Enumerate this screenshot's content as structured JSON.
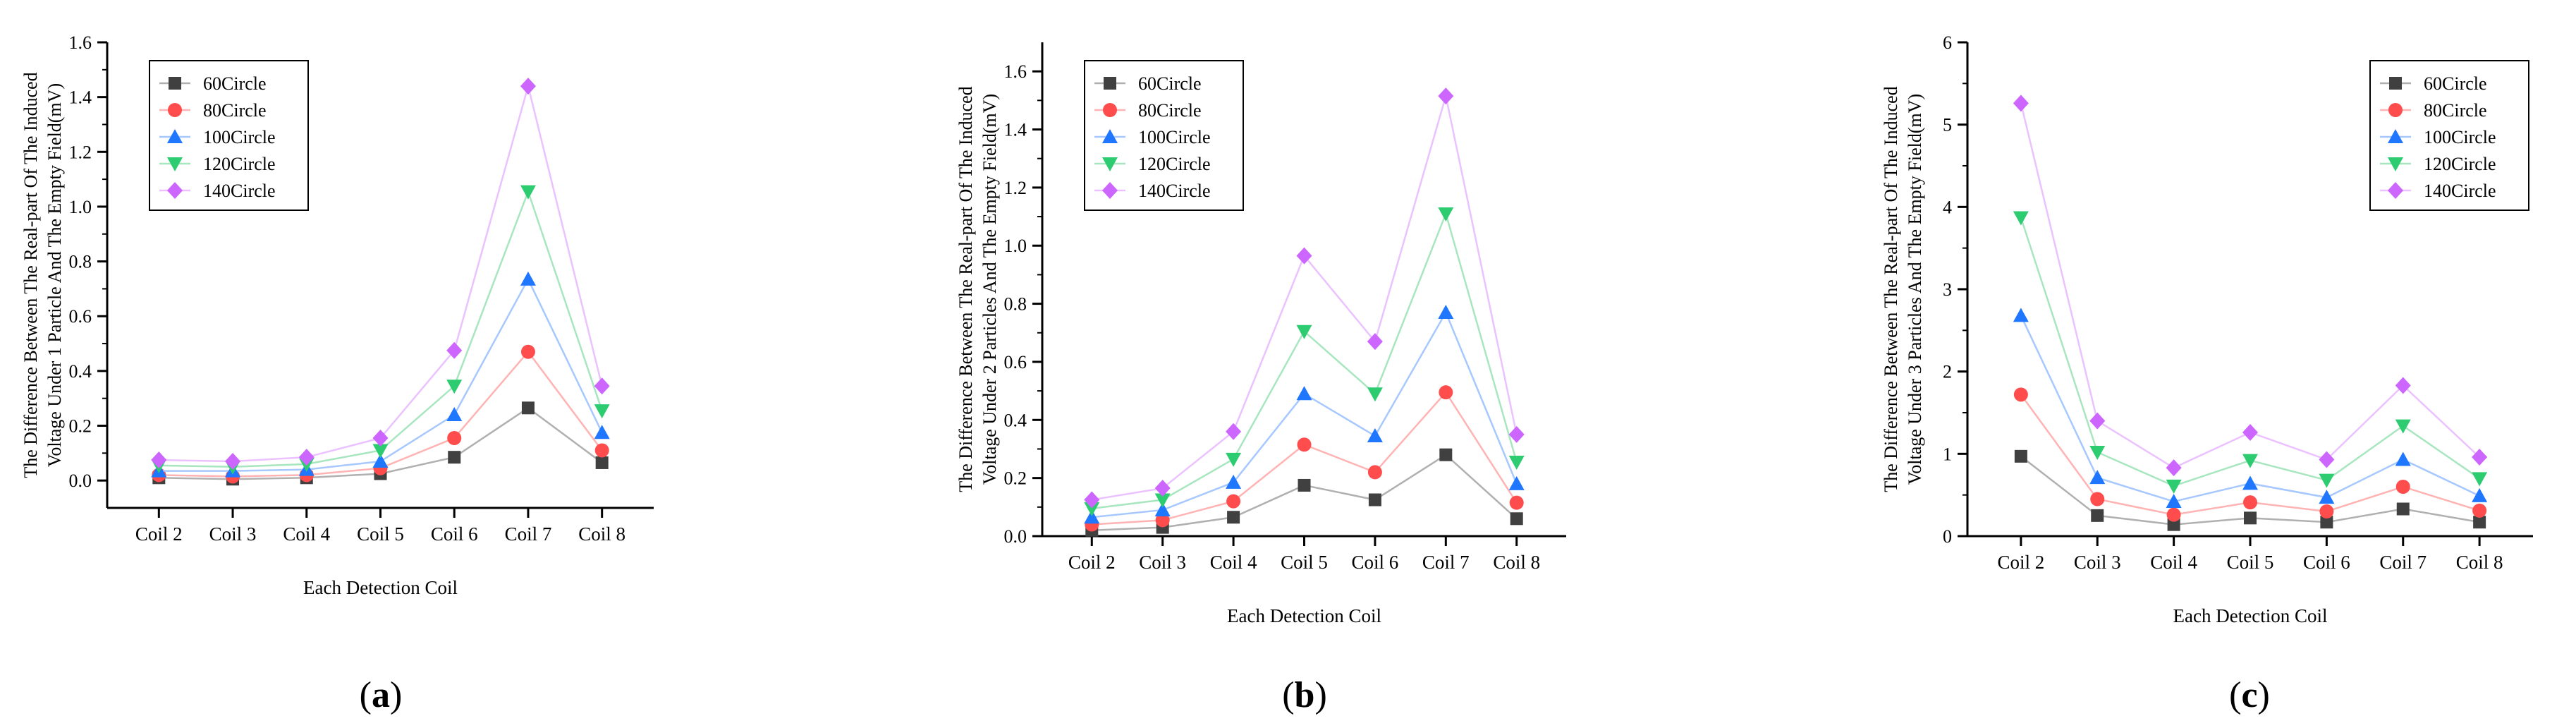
{
  "colors": {
    "axis": "#000000",
    "series": [
      "#404040",
      "#ff4d4d",
      "#1f77ff",
      "#2ecc71",
      "#cc66ff"
    ],
    "lines": [
      "#b0b0b0",
      "#ffb3b3",
      "#a6c8ff",
      "#a8e6bf",
      "#ebc2ff"
    ]
  },
  "chart_data": [
    {
      "type": "line",
      "panel_label": "(a)",
      "panel_letter": "a",
      "xlabel": "Each Detection Coil",
      "ylabel_line1": "The Difference Between The Real-part Of The Induced",
      "ylabel_line2": "Voltage Under 1 Particle And The Empty Field(mV)",
      "categories": [
        "Coil 2",
        "Coil 3",
        "Coil 4",
        "Coil 5",
        "Coil 6",
        "Coil 7",
        "Coil 8"
      ],
      "ylim": [
        -0.1,
        1.6
      ],
      "yticks": [
        "0.0",
        "0.2",
        "0.4",
        "0.6",
        "0.8",
        "1.0",
        "1.2",
        "1.4",
        "1.6"
      ],
      "legend_position": "top-left",
      "series": [
        {
          "name": "60Circle",
          "marker": "square",
          "values": [
            0.01,
            0.005,
            0.01,
            0.025,
            0.085,
            0.265,
            0.065
          ]
        },
        {
          "name": "80Circle",
          "marker": "circle",
          "values": [
            0.02,
            0.015,
            0.02,
            0.045,
            0.155,
            0.47,
            0.11
          ]
        },
        {
          "name": "100Circle",
          "marker": "triangle-up",
          "values": [
            0.035,
            0.035,
            0.04,
            0.07,
            0.24,
            0.735,
            0.175
          ]
        },
        {
          "name": "120Circle",
          "marker": "triangle-down",
          "values": [
            0.055,
            0.05,
            0.06,
            0.11,
            0.345,
            1.055,
            0.255
          ]
        },
        {
          "name": "140Circle",
          "marker": "diamond",
          "values": [
            0.075,
            0.07,
            0.085,
            0.155,
            0.475,
            1.44,
            0.345
          ]
        }
      ]
    },
    {
      "type": "line",
      "panel_label": "(b)",
      "panel_letter": "b",
      "xlabel": "Each Detection Coil",
      "ylabel_line1": "The Difference Between The Real-part Of The Induced",
      "ylabel_line2": "Voltage Under 2 Particles And The Empty Field(mV)",
      "categories": [
        "Coil 2",
        "Coil 3",
        "Coil 4",
        "Coil 5",
        "Coil 6",
        "Coil 7",
        "Coil 8"
      ],
      "ylim": [
        0.0,
        1.7
      ],
      "yticks": [
        "0.0",
        "0.2",
        "0.4",
        "0.6",
        "0.8",
        "1.0",
        "1.2",
        "1.4",
        "1.6"
      ],
      "legend_position": "top-left",
      "series": [
        {
          "name": "60Circle",
          "marker": "square",
          "values": [
            0.02,
            0.03,
            0.065,
            0.175,
            0.125,
            0.28,
            0.06
          ]
        },
        {
          "name": "80Circle",
          "marker": "circle",
          "values": [
            0.04,
            0.055,
            0.12,
            0.315,
            0.22,
            0.495,
            0.115
          ]
        },
        {
          "name": "100Circle",
          "marker": "triangle-up",
          "values": [
            0.065,
            0.09,
            0.185,
            0.49,
            0.345,
            0.77,
            0.18
          ]
        },
        {
          "name": "120Circle",
          "marker": "triangle-down",
          "values": [
            0.095,
            0.125,
            0.265,
            0.705,
            0.49,
            1.11,
            0.255
          ]
        },
        {
          "name": "140Circle",
          "marker": "diamond",
          "values": [
            0.125,
            0.165,
            0.36,
            0.965,
            0.67,
            1.515,
            0.35
          ]
        }
      ]
    },
    {
      "type": "line",
      "panel_label": "(c)",
      "panel_letter": "c",
      "xlabel": "Each Detection Coil",
      "ylabel_line1": "The Difference Between The Real-part Of The Induced",
      "ylabel_line2": "Voltage Under 3 Particles And The Empty Field(mV)",
      "categories": [
        "Coil 2",
        "Coil 3",
        "Coil 4",
        "Coil 5",
        "Coil 6",
        "Coil 7",
        "Coil 8"
      ],
      "ylim": [
        0,
        6
      ],
      "yticks": [
        "0",
        "1",
        "2",
        "3",
        "4",
        "5",
        "6"
      ],
      "legend_position": "top-right",
      "series": [
        {
          "name": "60Circle",
          "marker": "square",
          "values": [
            0.97,
            0.25,
            0.14,
            0.22,
            0.17,
            0.33,
            0.17
          ]
        },
        {
          "name": "80Circle",
          "marker": "circle",
          "values": [
            1.72,
            0.45,
            0.26,
            0.41,
            0.3,
            0.6,
            0.31
          ]
        },
        {
          "name": "100Circle",
          "marker": "triangle-up",
          "values": [
            2.68,
            0.71,
            0.42,
            0.64,
            0.47,
            0.93,
            0.49
          ]
        },
        {
          "name": "120Circle",
          "marker": "triangle-down",
          "values": [
            3.87,
            1.02,
            0.61,
            0.92,
            0.68,
            1.34,
            0.7
          ]
        },
        {
          "name": "140Circle",
          "marker": "diamond",
          "values": [
            5.26,
            1.4,
            0.83,
            1.26,
            0.93,
            1.83,
            0.96
          ]
        }
      ]
    }
  ]
}
